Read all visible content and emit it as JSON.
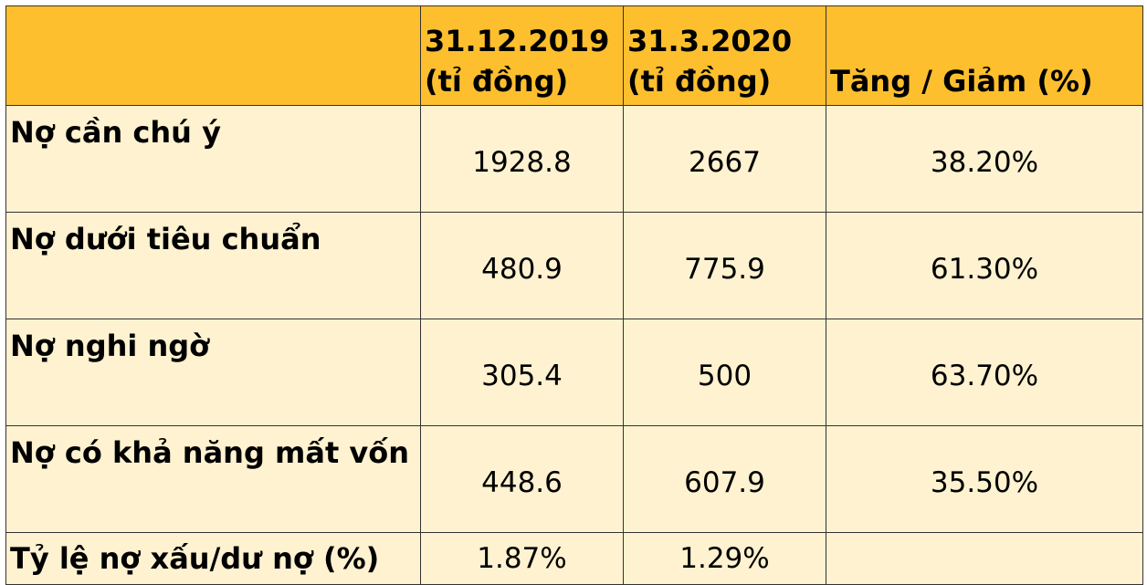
{
  "header": {
    "col1_line1": "31.12.2019",
    "col1_line2": "(tỉ đồng)",
    "col2_line1": "31.3.2020",
    "col2_line2": "(tỉ đồng)",
    "col3": "Tăng / Giảm (%)"
  },
  "rows": [
    {
      "label": "Nợ cần chú ý",
      "v2019": "1928.8",
      "v2020": "2667",
      "change": "38.20%"
    },
    {
      "label": "Nợ dưới tiêu chuẩn",
      "v2019": "480.9",
      "v2020": "775.9",
      "change": "61.30%"
    },
    {
      "label": "Nợ nghi ngờ",
      "v2019": "305.4",
      "v2020": "500",
      "change": "63.70%"
    },
    {
      "label": "Nợ có khả năng mất vốn",
      "v2019": "448.6",
      "v2020": "607.9",
      "change": "35.50%"
    },
    {
      "label": "Tỷ lệ nợ xấu/dư nợ (%)",
      "v2019": "1.87%",
      "v2020": "1.29%",
      "change": ""
    }
  ],
  "colors": {
    "header_bg": "#fdbf2d",
    "cell_bg": "#fef2d0",
    "border": "#333333"
  }
}
